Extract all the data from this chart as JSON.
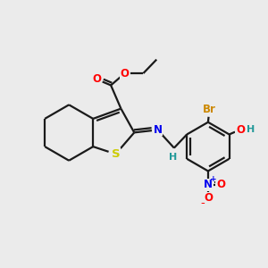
{
  "bg_color": "#ebebeb",
  "bond_color": "#1a1a1a",
  "bond_lw": 1.6,
  "atom_colors": {
    "O": "#ff0000",
    "S": "#cccc00",
    "N": "#0000ee",
    "Br": "#cc8800",
    "H_teal": "#229999",
    "NO2_N": "#0000ee",
    "NO2_O": "#ff0000",
    "NO2_plus": "#0000ee",
    "NO2_minus": "#ff0000"
  },
  "font_size": 8.5,
  "figsize": [
    3.0,
    3.0
  ],
  "dpi": 100
}
